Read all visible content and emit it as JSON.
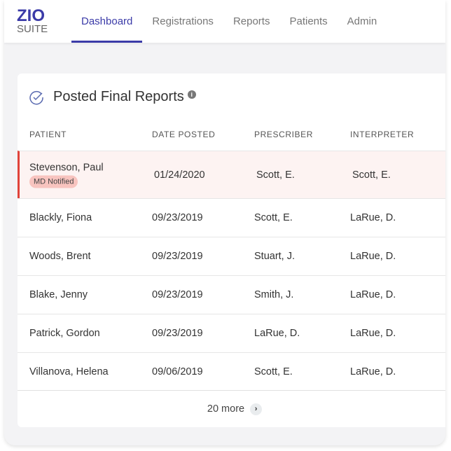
{
  "logo": {
    "line1": "ZIO",
    "line2": "SUITE"
  },
  "nav": {
    "tabs": [
      {
        "label": "Dashboard",
        "active": true
      },
      {
        "label": "Registrations"
      },
      {
        "label": "Reports"
      },
      {
        "label": "Patients"
      },
      {
        "label": "Admin"
      }
    ]
  },
  "card": {
    "title": "Posted Final Reports",
    "info_icon": "i",
    "columns": [
      "PATIENT",
      "DATE POSTED",
      "PRESCRIBER",
      "INTERPRETER"
    ],
    "rows": [
      {
        "patient": "Stevenson, Paul",
        "badge": "MD Notified",
        "date": "01/24/2020",
        "prescriber": "Scott, E.",
        "interpreter": "Scott, E."
      },
      {
        "patient": "Blackly, Fiona",
        "date": "09/23/2019",
        "prescriber": "Scott, E.",
        "interpreter": "LaRue, D."
      },
      {
        "patient": "Woods, Brent",
        "date": "09/23/2019",
        "prescriber": "Stuart, J.",
        "interpreter": "LaRue, D."
      },
      {
        "patient": "Blake, Jenny",
        "date": "09/23/2019",
        "prescriber": "Smith, J.",
        "interpreter": "LaRue, D."
      },
      {
        "patient": "Patrick, Gordon",
        "date": "09/23/2019",
        "prescriber": "LaRue, D.",
        "interpreter": "LaRue, D."
      },
      {
        "patient": "Villanova, Helena",
        "date": "09/06/2019",
        "prescriber": "Scott, E.",
        "interpreter": "LaRue, D."
      }
    ],
    "more_label": "20 more",
    "more_icon": "›"
  },
  "colors": {
    "accent": "#3b3ba8",
    "alert": "#e0433a",
    "badge": "#f8c4bf"
  }
}
